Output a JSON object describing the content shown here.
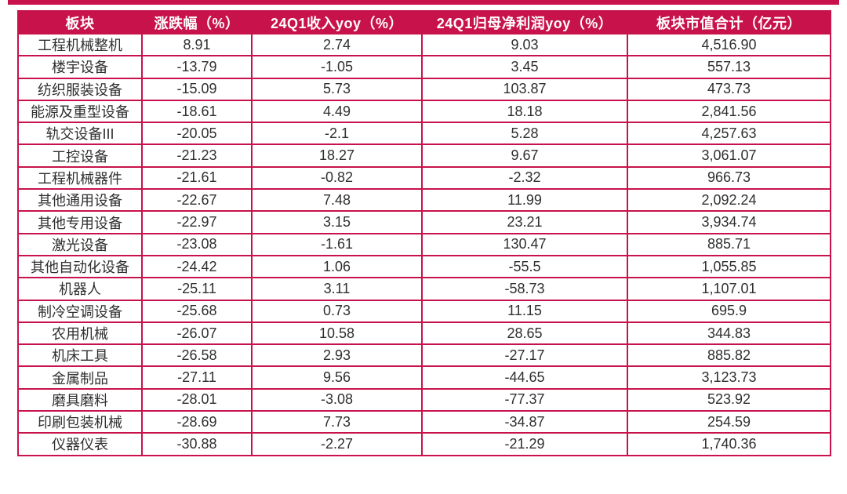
{
  "colors": {
    "accent": "#c8124b",
    "header_text": "#ffffff",
    "body_text": "#2f2f2f",
    "background": "#ffffff"
  },
  "chart_data": {
    "type": "table",
    "title": "",
    "columns": [
      {
        "key": "sector",
        "label": "板块"
      },
      {
        "key": "change",
        "label": "涨跌幅（%）"
      },
      {
        "key": "revenue",
        "label": "24Q1收入yoy（%）"
      },
      {
        "key": "profit",
        "label": "24Q1归母净利润yoy（%）"
      },
      {
        "key": "marketcap",
        "label": "板块市值合计（亿元）"
      }
    ],
    "rows": [
      [
        "工程机械整机",
        "8.91",
        "2.74",
        "9.03",
        "4,516.90"
      ],
      [
        "楼宇设备",
        "-13.79",
        "-1.05",
        "3.45",
        "557.13"
      ],
      [
        "纺织服装设备",
        "-15.09",
        "5.73",
        "103.87",
        "473.73"
      ],
      [
        "能源及重型设备",
        "-18.61",
        "4.49",
        "18.18",
        "2,841.56"
      ],
      [
        "轨交设备III",
        "-20.05",
        "-2.1",
        "5.28",
        "4,257.63"
      ],
      [
        "工控设备",
        "-21.23",
        "18.27",
        "9.67",
        "3,061.07"
      ],
      [
        "工程机械器件",
        "-21.61",
        "-0.82",
        "-2.32",
        "966.73"
      ],
      [
        "其他通用设备",
        "-22.67",
        "7.48",
        "11.99",
        "2,092.24"
      ],
      [
        "其他专用设备",
        "-22.97",
        "3.15",
        "23.21",
        "3,934.74"
      ],
      [
        "激光设备",
        "-23.08",
        "-1.61",
        "130.47",
        "885.71"
      ],
      [
        "其他自动化设备",
        "-24.42",
        "1.06",
        "-55.5",
        "1,055.85"
      ],
      [
        "机器人",
        "-25.11",
        "3.11",
        "-58.73",
        "1,107.01"
      ],
      [
        "制冷空调设备",
        "-25.68",
        "0.73",
        "11.15",
        "695.9"
      ],
      [
        "农用机械",
        "-26.07",
        "10.58",
        "28.65",
        "344.83"
      ],
      [
        "机床工具",
        "-26.58",
        "2.93",
        "-27.17",
        "885.82"
      ],
      [
        "金属制品",
        "-27.11",
        "9.56",
        "-44.65",
        "3,123.73"
      ],
      [
        "磨具磨料",
        "-28.01",
        "-3.08",
        "-77.37",
        "523.92"
      ],
      [
        "印刷包装机械",
        "-28.69",
        "7.73",
        "-34.87",
        "254.59"
      ],
      [
        "仪器仪表",
        "-30.88",
        "-2.27",
        "-21.29",
        "1,740.36"
      ]
    ]
  }
}
